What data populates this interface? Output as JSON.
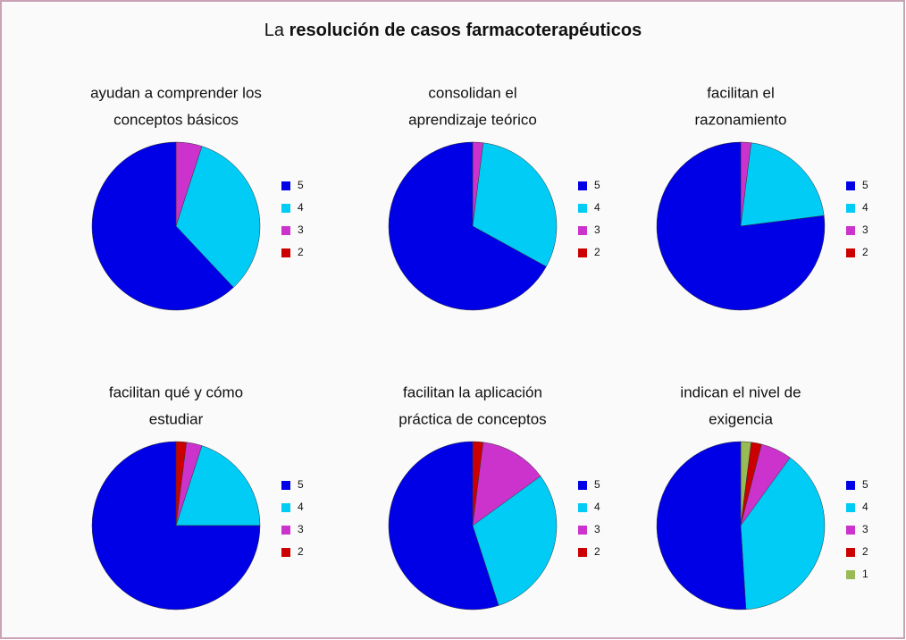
{
  "title": {
    "plain": "La",
    "bold": "resolución de casos farmacoterapéuticos"
  },
  "chart_data": [
    {
      "type": "pie",
      "title": [
        "ayudan a comprender los",
        "conceptos básicos"
      ],
      "categories": [
        "5",
        "4",
        "3",
        "2"
      ],
      "values": [
        62,
        33,
        5,
        0
      ],
      "colors": [
        "#0000e6",
        "#00ccf5",
        "#cc33cc",
        "#cc0000"
      ]
    },
    {
      "type": "pie",
      "title": [
        "consolidan el",
        "aprendizaje  teórico"
      ],
      "categories": [
        "5",
        "4",
        "3",
        "2"
      ],
      "values": [
        67,
        31,
        2,
        0
      ],
      "colors": [
        "#0000e6",
        "#00ccf5",
        "#cc33cc",
        "#cc0000"
      ]
    },
    {
      "type": "pie",
      "title": [
        "facilitan el",
        "razonamiento"
      ],
      "categories": [
        "5",
        "4",
        "3",
        "2"
      ],
      "values": [
        77,
        21,
        2,
        0
      ],
      "colors": [
        "#0000e6",
        "#00ccf5",
        "#cc33cc",
        "#cc0000"
      ]
    },
    {
      "type": "pie",
      "title": [
        "facilitan qué  y cómo",
        "estudiar"
      ],
      "categories": [
        "5",
        "4",
        "3",
        "2"
      ],
      "values": [
        75,
        20,
        3,
        2
      ],
      "colors": [
        "#0000e6",
        "#00ccf5",
        "#cc33cc",
        "#cc0000"
      ]
    },
    {
      "type": "pie",
      "title": [
        "facilitan la aplicación",
        "práctica de conceptos"
      ],
      "categories": [
        "5",
        "4",
        "3",
        "2"
      ],
      "values": [
        55,
        30,
        13,
        2
      ],
      "colors": [
        "#0000e6",
        "#00ccf5",
        "#cc33cc",
        "#cc0000"
      ]
    },
    {
      "type": "pie",
      "title": [
        "indican el nivel de",
        "exigencia"
      ],
      "categories": [
        "5",
        "4",
        "3",
        "2",
        "1"
      ],
      "values": [
        51,
        39,
        6,
        2,
        2
      ],
      "colors": [
        "#0000e6",
        "#00ccf5",
        "#cc33cc",
        "#cc0000",
        "#99bb55"
      ]
    }
  ]
}
